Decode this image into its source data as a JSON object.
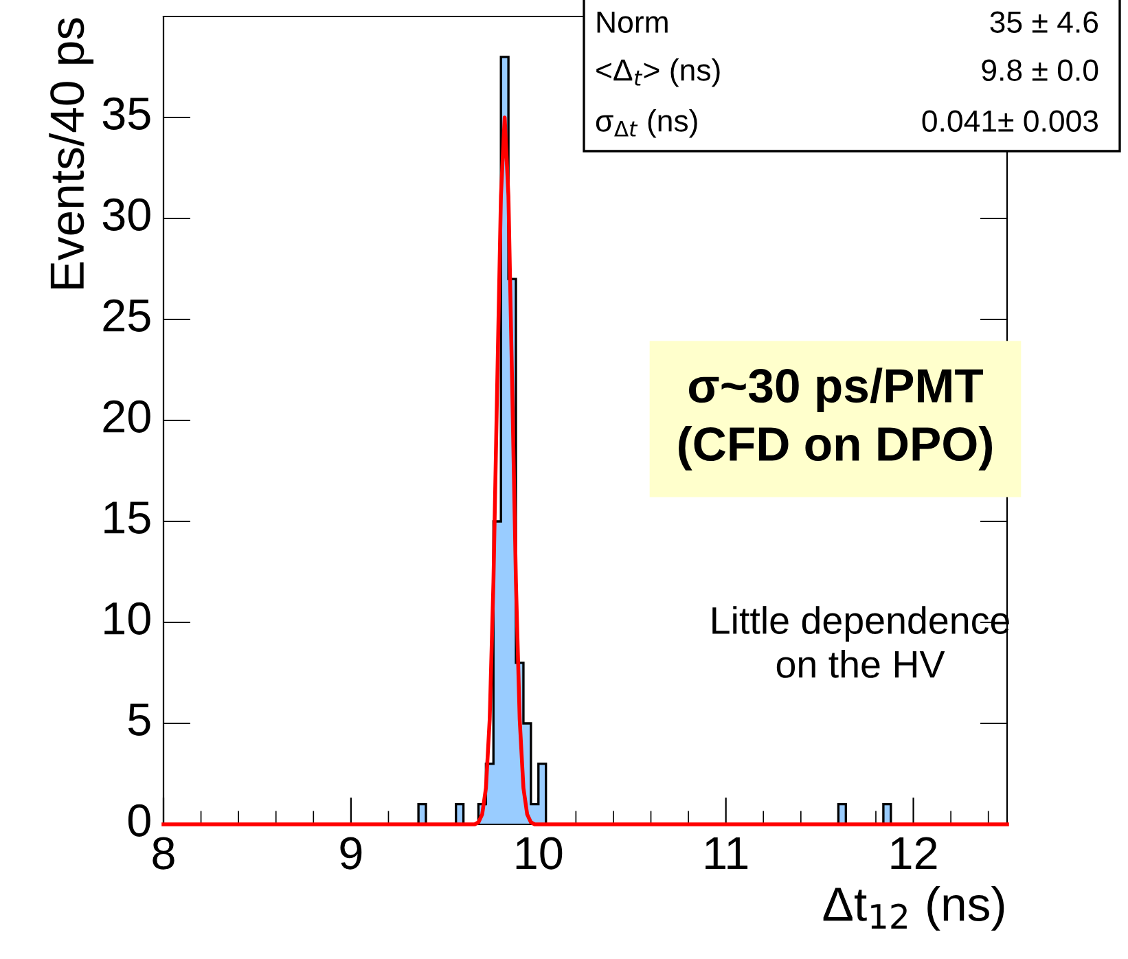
{
  "chart_data": {
    "type": "histogram",
    "xlabel": "Δt$_{12}$ (ns)",
    "ylabel": "Events/40 ps",
    "bins": [
      9.36,
      9.4,
      9.44,
      9.48,
      9.52,
      9.56,
      9.6,
      9.64,
      9.68,
      9.72,
      9.76,
      9.8,
      9.84,
      9.88,
      9.92,
      9.96,
      10.0,
      10.04,
      10.08,
      10.12,
      10.16,
      10.2,
      10.24,
      10.28,
      10.32,
      10.36,
      10.4,
      10.44,
      10.48,
      10.52,
      10.56,
      10.6,
      10.64,
      10.68,
      10.72,
      10.76,
      10.8,
      10.84,
      10.88,
      10.92,
      10.96,
      11.0,
      11.04,
      11.08,
      11.12,
      11.16,
      11.2,
      11.24,
      11.28,
      11.32,
      11.36,
      11.4,
      11.44,
      11.48,
      11.52,
      11.56,
      11.6,
      11.64,
      11.68,
      11.72,
      11.76,
      11.8,
      11.84,
      11.88
    ],
    "values": [
      1,
      0,
      0,
      0,
      0,
      1,
      0,
      0,
      1,
      3,
      15,
      38,
      27,
      8,
      5,
      1,
      3,
      0,
      0,
      0,
      0,
      0,
      0,
      0,
      0,
      0,
      0,
      0,
      0,
      0,
      0,
      0,
      0,
      0,
      0,
      0,
      0,
      0,
      0,
      0,
      0,
      0,
      0,
      0,
      0,
      0,
      0,
      0,
      0,
      0,
      0,
      0,
      0,
      0,
      0,
      0,
      1,
      0,
      0,
      0,
      0,
      0,
      1
    ],
    "color": "#99ccff",
    "series": [
      {
        "type": "line",
        "color": "#ff0000",
        "x": [
          8.0,
          9.66,
          9.68,
          9.7,
          9.72,
          9.74,
          9.76,
          9.78,
          9.8,
          9.82,
          9.84,
          9.86,
          9.88,
          9.9,
          9.92,
          9.94,
          9.96,
          9.98,
          12.5
        ],
        "values": [
          0,
          0,
          0.1,
          0.5,
          1.8,
          5.2,
          12.0,
          21.7,
          31.1,
          35,
          31.1,
          21.7,
          12.0,
          5.2,
          1.8,
          0.5,
          0.1,
          0,
          0
        ]
      }
    ],
    "xlim": [
      8,
      12.5
    ],
    "ylim": [
      0,
      40
    ],
    "xticks": [
      8,
      9,
      10,
      11,
      12
    ],
    "yticks": [
      0,
      5,
      10,
      15,
      20,
      25,
      30,
      35
    ],
    "grid": false,
    "annotations": [
      "Norm",
      "35 ± 4.6",
      "<Δ$_{t}$> (ns)",
      "9.8 ± 0.0",
      "σ$_{Δt}$ (ns)",
      "0.041± 0.003",
      "σ~30 ps/PMT\n(CFD on DPO)",
      "Little dependence\non the HV"
    ]
  }
}
